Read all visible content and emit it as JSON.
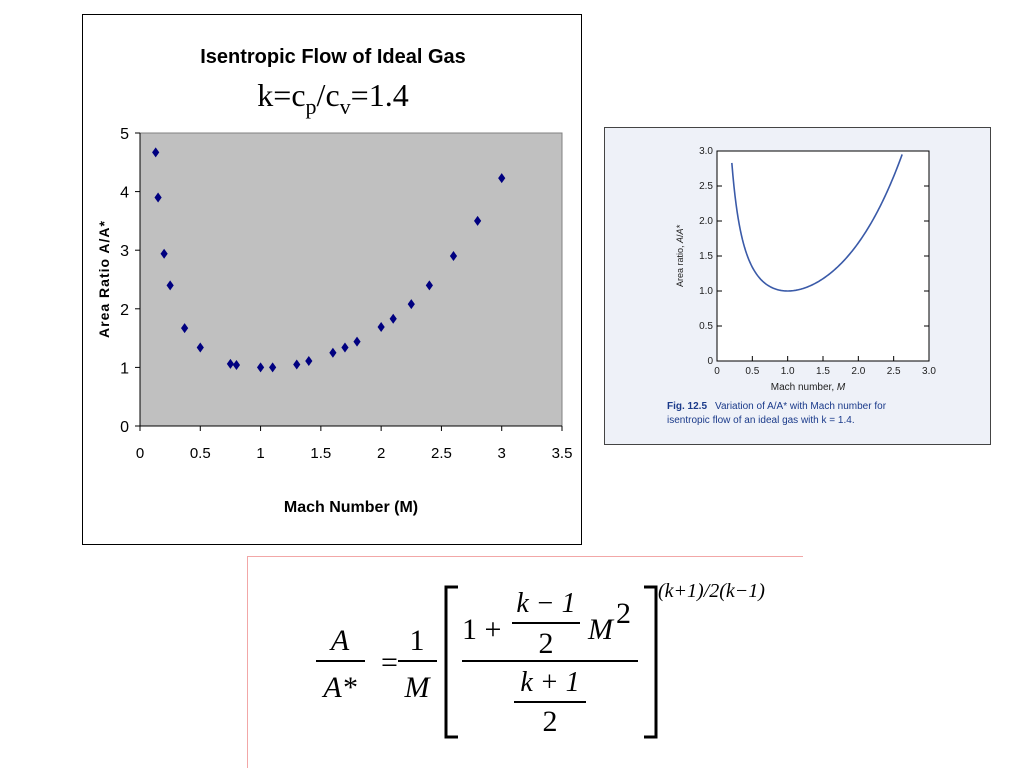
{
  "chart_data": [
    {
      "type": "scatter",
      "title": "Isentropic Flow of Ideal Gas",
      "subtitle": {
        "k": "k=c",
        "p": "p",
        "slash": "/c",
        "v": "v",
        "value": "=1.4"
      },
      "xlabel": "Mach Number (M)",
      "ylabel": "Area Ratio A/A*",
      "xlim": [
        0,
        3.5
      ],
      "ylim": [
        0,
        5
      ],
      "x_ticks": [
        "0",
        "0.5",
        "1",
        "1.5",
        "2",
        "2.5",
        "3",
        "3.5"
      ],
      "y_ticks": [
        "0",
        "1",
        "2",
        "3",
        "4",
        "5"
      ],
      "plot_area_color": "#c0c0c0",
      "marker_color": "#000080",
      "marker": "diamond",
      "grid": false,
      "points": [
        {
          "x": 0.13,
          "y": 4.67
        },
        {
          "x": 0.15,
          "y": 3.9
        },
        {
          "x": 0.2,
          "y": 2.94
        },
        {
          "x": 0.25,
          "y": 2.4
        },
        {
          "x": 0.37,
          "y": 1.67
        },
        {
          "x": 0.5,
          "y": 1.34
        },
        {
          "x": 0.75,
          "y": 1.06
        },
        {
          "x": 0.8,
          "y": 1.04
        },
        {
          "x": 1.0,
          "y": 1.0
        },
        {
          "x": 1.1,
          "y": 1.0
        },
        {
          "x": 1.3,
          "y": 1.05
        },
        {
          "x": 1.4,
          "y": 1.11
        },
        {
          "x": 1.6,
          "y": 1.25
        },
        {
          "x": 1.7,
          "y": 1.34
        },
        {
          "x": 1.8,
          "y": 1.44
        },
        {
          "x": 2.0,
          "y": 1.69
        },
        {
          "x": 2.1,
          "y": 1.83
        },
        {
          "x": 2.25,
          "y": 2.08
        },
        {
          "x": 2.4,
          "y": 2.4
        },
        {
          "x": 2.6,
          "y": 2.9
        },
        {
          "x": 2.8,
          "y": 3.5
        },
        {
          "x": 3.0,
          "y": 4.23
        }
      ]
    },
    {
      "type": "line",
      "xlabel_text": "Mach number, ",
      "xlabel_var": "M",
      "ylabel": "Area ratio, A/A*",
      "ylabel_text": "Area ratio, ",
      "xlim": [
        0,
        3.0
      ],
      "ylim": [
        0,
        3.0
      ],
      "x_ticks": [
        "0",
        "0.5",
        "1.0",
        "1.5",
        "2.0",
        "2.5",
        "3.0"
      ],
      "y_ticks": [
        "0",
        "0.5",
        "1.0",
        "1.5",
        "2.0",
        "2.5",
        "3.0"
      ],
      "line_color": "#3a5aa8",
      "k": 1.4,
      "m_range": [
        0.21,
        2.62
      ],
      "caption": {
        "label": "Fig. 12.5",
        "line1": "Variation of A/A* with Mach number for",
        "line2": "isentropic flow of an ideal gas with k = 1.4."
      }
    }
  ],
  "equation": {
    "lhs_num": "A",
    "lhs_den": "A*",
    "equals": "=",
    "coef_num": "1",
    "coef_den": "M",
    "one_plus": "1 +",
    "km1": "k − 1",
    "two_a": "2",
    "m_sq": "M",
    "sq": "2",
    "kp1": "k + 1",
    "two_b": "2",
    "exponent": "(k+1)/2(k−1)"
  }
}
